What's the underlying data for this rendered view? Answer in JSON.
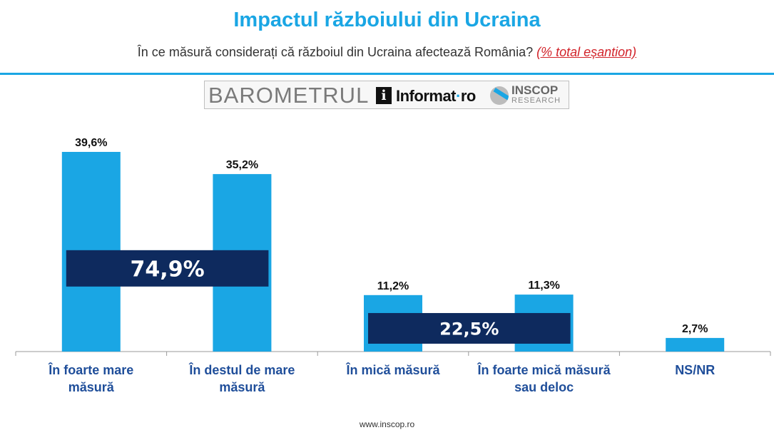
{
  "header": {
    "title": "Impactul războiului din Ucraina",
    "subtitle": "În ce măsură considerați că războiul din Ucraina afectează România?",
    "subtitle_note": "(% total eșantion)"
  },
  "banner": {
    "barometru": "BAROMETRUL",
    "informat_name": "Informat",
    "informat_dot": "·",
    "informat_tld": "ro",
    "inscop": "INSCOP",
    "research": "RESEARCH"
  },
  "chart_data": {
    "type": "bar",
    "title": "Impactul războiului din Ucraina",
    "categories": [
      [
        "În foarte mare",
        "măsură"
      ],
      [
        "În destul de mare",
        "măsură"
      ],
      [
        "În mică măsură"
      ],
      [
        "În foarte mică măsură",
        "sau deloc"
      ],
      [
        "NS/NR"
      ]
    ],
    "values": [
      39.6,
      35.2,
      11.2,
      11.3,
      2.7
    ],
    "value_labels": [
      "39,6%",
      "35,2%",
      "11,2%",
      "11,3%",
      "2,7%"
    ],
    "ylim": [
      0,
      40
    ],
    "grid": false,
    "bar_color": "#1aa6e4",
    "annotations": [
      {
        "text": "74,9%",
        "spans": [
          0,
          1
        ],
        "at_value": 16.5,
        "color": "#0e2a5e"
      },
      {
        "text": "22,5%",
        "spans": [
          2,
          3
        ],
        "at_value": 4.6,
        "color": "#0e2a5e"
      }
    ]
  },
  "footer": {
    "url": "www.inscop.ro"
  }
}
